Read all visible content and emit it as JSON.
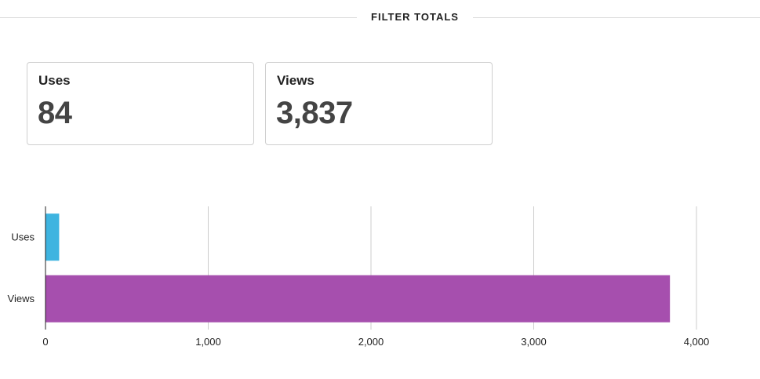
{
  "section": {
    "title": "FILTER TOTALS"
  },
  "cards": [
    {
      "label": "Uses",
      "value": "84"
    },
    {
      "label": "Views",
      "value": "3,837"
    }
  ],
  "colors": {
    "uses": "#3eb4e0",
    "views": "#a64fae",
    "grid": "#cccccc",
    "axis": "#222222"
  },
  "chart_data": {
    "type": "bar",
    "orientation": "horizontal",
    "categories": [
      "Uses",
      "Views"
    ],
    "values": [
      84,
      3837
    ],
    "xlim": [
      0,
      4000
    ],
    "x_ticks": [
      0,
      1000,
      2000,
      3000,
      4000
    ],
    "x_tick_labels": [
      "0",
      "1,000",
      "2,000",
      "3,000",
      "4,000"
    ],
    "grid": true,
    "legend": "none"
  }
}
